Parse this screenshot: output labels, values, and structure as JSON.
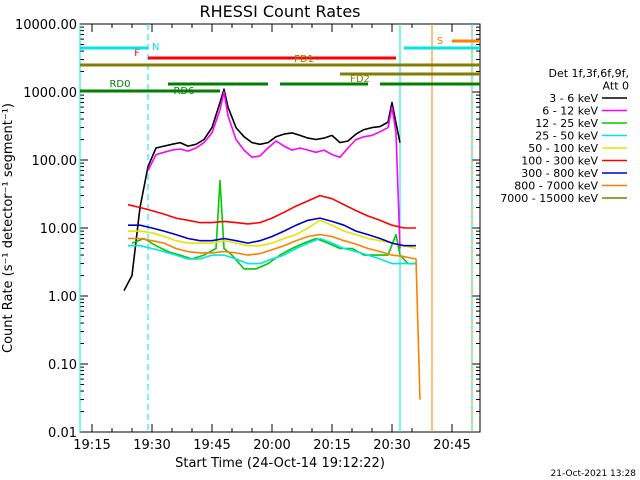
{
  "chart_data": {
    "type": "line",
    "title": "RHESSI Count Rates",
    "xlabel": "Start Time (24-Oct-14 19:12:22)",
    "ylabel": "Count Rate (s⁻¹ detector⁻¹ segment⁻¹)",
    "ylabel_visible": "Count Rate (s⁻¹ detector⁻¹ segment⁻¹)",
    "y_scale": "log",
    "xlim": [
      "19:12",
      "20:52"
    ],
    "ylim": [
      0.01,
      10000
    ],
    "x_ticks": [
      "19:15",
      "19:30",
      "19:45",
      "20:00",
      "20:15",
      "20:30",
      "20:45"
    ],
    "y_ticks": [
      "0.01",
      "0.10",
      "1.00",
      "10.00",
      "100.00",
      "1000.00",
      "10000.00"
    ],
    "legend_header": [
      "Det 1f,3f,6f,9f,",
      "Att 0"
    ],
    "legend_position": "right",
    "series": [
      {
        "name": "3 - 6 keV",
        "color": "#000000",
        "x": [
          "19:23",
          "19:25",
          "19:27",
          "19:29",
          "19:31",
          "19:33",
          "19:35",
          "19:37",
          "19:39",
          "19:41",
          "19:43",
          "19:45",
          "19:47",
          "19:48",
          "19:49",
          "19:51",
          "19:53",
          "19:55",
          "19:57",
          "19:59",
          "20:01",
          "20:03",
          "20:05",
          "20:07",
          "20:09",
          "20:11",
          "20:13",
          "20:15",
          "20:17",
          "20:19",
          "20:21",
          "20:23",
          "20:25",
          "20:27",
          "20:29",
          "20:30",
          "20:31",
          "20:32"
        ],
        "values": [
          1.2,
          2,
          20,
          80,
          150,
          160,
          170,
          180,
          160,
          170,
          200,
          300,
          700,
          1100,
          600,
          300,
          220,
          180,
          170,
          180,
          220,
          240,
          250,
          230,
          210,
          200,
          210,
          230,
          180,
          190,
          240,
          280,
          300,
          310,
          360,
          700,
          350,
          180
        ]
      },
      {
        "name": "6 - 12 keV",
        "color": "#ff00ff",
        "x": [
          "19:29",
          "19:31",
          "19:33",
          "19:35",
          "19:37",
          "19:39",
          "19:41",
          "19:43",
          "19:45",
          "19:47",
          "19:48",
          "19:49",
          "19:51",
          "19:53",
          "19:55",
          "19:57",
          "19:59",
          "20:01",
          "20:03",
          "20:05",
          "20:07",
          "20:09",
          "20:11",
          "20:13",
          "20:15",
          "20:17",
          "20:19",
          "20:21",
          "20:23",
          "20:25",
          "20:27",
          "20:29",
          "20:30",
          "20:31",
          "20:32"
        ],
        "values": [
          70,
          120,
          130,
          140,
          145,
          135,
          150,
          180,
          250,
          550,
          1000,
          450,
          200,
          140,
          110,
          115,
          150,
          190,
          160,
          140,
          150,
          140,
          130,
          140,
          120,
          110,
          150,
          200,
          220,
          230,
          260,
          300,
          600,
          250,
          5
        ]
      },
      {
        "name": "12 - 25 keV",
        "color": "#00cc00",
        "x": [
          "19:25",
          "19:28",
          "19:31",
          "19:34",
          "19:37",
          "19:40",
          "19:43",
          "19:46",
          "19:47",
          "19:48",
          "19:50",
          "19:53",
          "19:56",
          "19:59",
          "20:02",
          "20:05",
          "20:08",
          "20:11",
          "20:14",
          "20:17",
          "20:20",
          "20:23",
          "20:26",
          "20:29",
          "20:31",
          "20:32",
          "20:34",
          "20:36"
        ],
        "values": [
          6,
          7,
          5.5,
          4.5,
          4,
          3.5,
          4,
          5,
          50,
          5,
          4,
          2.5,
          2.5,
          3,
          4,
          5,
          6,
          7,
          6,
          5,
          5,
          4,
          4,
          4,
          8,
          4,
          3,
          3
        ]
      },
      {
        "name": "25 - 50 keV",
        "color": "#00e5e5",
        "x": [
          "19:24",
          "19:27",
          "19:30",
          "19:33",
          "19:36",
          "19:39",
          "19:42",
          "19:45",
          "19:48",
          "19:51",
          "19:54",
          "19:57",
          "20:00",
          "20:03",
          "20:06",
          "20:09",
          "20:12",
          "20:15",
          "20:18",
          "20:21",
          "20:24",
          "20:27",
          "20:30",
          "20:33",
          "20:36"
        ],
        "values": [
          5.5,
          5.5,
          5,
          4.5,
          4,
          3.5,
          3.5,
          4,
          4,
          3.5,
          3,
          3,
          3.5,
          4,
          5,
          6,
          7,
          6,
          5,
          4.5,
          4,
          3.5,
          3,
          3,
          3
        ]
      },
      {
        "name": "50 - 100 keV",
        "color": "#e5e500",
        "x": [
          "19:24",
          "19:27",
          "19:30",
          "19:33",
          "19:36",
          "19:39",
          "19:42",
          "19:45",
          "19:48",
          "19:51",
          "19:54",
          "19:57",
          "20:00",
          "20:03",
          "20:06",
          "20:09",
          "20:12",
          "20:15",
          "20:18",
          "20:21",
          "20:24",
          "20:27",
          "20:30",
          "20:33",
          "20:36"
        ],
        "values": [
          9,
          9,
          8.5,
          7.5,
          6.5,
          6,
          6,
          6,
          6.5,
          6,
          5.5,
          5.5,
          6,
          7,
          8,
          10,
          13,
          11,
          9,
          8,
          7,
          6.5,
          6,
          5.5,
          5
        ]
      },
      {
        "name": "100 - 300 keV",
        "color": "#ff0000",
        "x": [
          "19:24",
          "19:27",
          "19:30",
          "19:33",
          "19:36",
          "19:39",
          "19:42",
          "19:45",
          "19:48",
          "19:51",
          "19:54",
          "19:57",
          "20:00",
          "20:03",
          "20:06",
          "20:09",
          "20:12",
          "20:15",
          "20:18",
          "20:21",
          "20:24",
          "20:27",
          "20:30",
          "20:33",
          "20:36"
        ],
        "values": [
          22,
          20,
          18,
          16,
          14,
          13,
          12,
          12,
          12.5,
          12,
          11.5,
          12,
          14,
          17,
          21,
          25,
          30,
          27,
          22,
          18,
          15,
          13,
          11,
          10,
          10
        ]
      },
      {
        "name": "300 - 800 keV",
        "color": "#0000cc",
        "x": [
          "19:24",
          "19:27",
          "19:30",
          "19:33",
          "19:36",
          "19:39",
          "19:42",
          "19:45",
          "19:48",
          "19:51",
          "19:54",
          "19:57",
          "20:00",
          "20:03",
          "20:06",
          "20:09",
          "20:12",
          "20:15",
          "20:18",
          "20:21",
          "20:24",
          "20:27",
          "20:30",
          "20:33",
          "20:36"
        ],
        "values": [
          11,
          11,
          10,
          9,
          8,
          7,
          6.5,
          6.5,
          7,
          6.5,
          6,
          6.5,
          7.5,
          9,
          11,
          13,
          14,
          12.5,
          11,
          9,
          8,
          7,
          6,
          5.5,
          5.5
        ]
      },
      {
        "name": "800 - 7000 keV",
        "color": "#ff7f00",
        "x": [
          "19:24",
          "19:27",
          "19:30",
          "19:33",
          "19:36",
          "19:39",
          "19:42",
          "19:45",
          "19:48",
          "19:51",
          "19:54",
          "19:57",
          "20:00",
          "20:03",
          "20:06",
          "20:09",
          "20:12",
          "20:15",
          "20:18",
          "20:21",
          "20:24",
          "20:27",
          "20:30",
          "20:33",
          "20:36",
          "20:37"
        ],
        "values": [
          7,
          7,
          6.5,
          6,
          5,
          4.5,
          4.3,
          4.3,
          4.5,
          4.3,
          4,
          4.2,
          4.8,
          5.5,
          6.5,
          7.5,
          8,
          7.5,
          6.5,
          5.8,
          5,
          4.5,
          4,
          3.8,
          3.5,
          0.03
        ]
      },
      {
        "name": "7000 - 15000 keV",
        "color": "#7f7f00",
        "x": [],
        "values": []
      }
    ],
    "state_bars": [
      {
        "label": "F",
        "color": "#ff0000",
        "segments": [
          [
            "19:29",
            "20:31"
          ]
        ]
      },
      {
        "label": "FD1",
        "color": "#7f7f00",
        "segments": [
          [
            "19:12",
            "20:52"
          ]
        ]
      },
      {
        "label": "FD2",
        "color": "#7f7f00",
        "segments": [
          [
            "20:17",
            "20:52"
          ]
        ]
      },
      {
        "label": "RD0",
        "color": "#007f00",
        "segments": [
          [
            "19:12",
            "19:47"
          ]
        ]
      },
      {
        "label": "RD6",
        "color": "#007f00",
        "segments": [
          [
            "19:34",
            "19:59"
          ],
          [
            "20:02",
            "20:24"
          ],
          [
            "20:27",
            "20:52"
          ]
        ]
      },
      {
        "label": "N",
        "color": "#00e5e5",
        "segments": [
          [
            "19:12",
            "19:29"
          ],
          [
            "20:33",
            "20:52"
          ]
        ]
      },
      {
        "label": "S",
        "color": "#ff7f00",
        "segments": [
          [
            "20:45",
            "20:52"
          ]
        ]
      }
    ],
    "vertical_markers": [
      {
        "x": "19:12",
        "color": "#00e5e5",
        "style": "solid"
      },
      {
        "x": "19:29",
        "color": "#00e5e5",
        "style": "dashed"
      },
      {
        "x": "20:32",
        "color": "#00e5e5",
        "style": "solid"
      },
      {
        "x": "20:40",
        "color": "#ff7f00",
        "style": "solid"
      },
      {
        "x": "20:50",
        "color": "#ff7f00",
        "style": "solid"
      },
      {
        "x": "20:50",
        "color": "#00e5e5",
        "style": "dashed"
      }
    ],
    "grid": false
  },
  "footer": {
    "timestamp": "21-Oct-2021 13:28"
  }
}
